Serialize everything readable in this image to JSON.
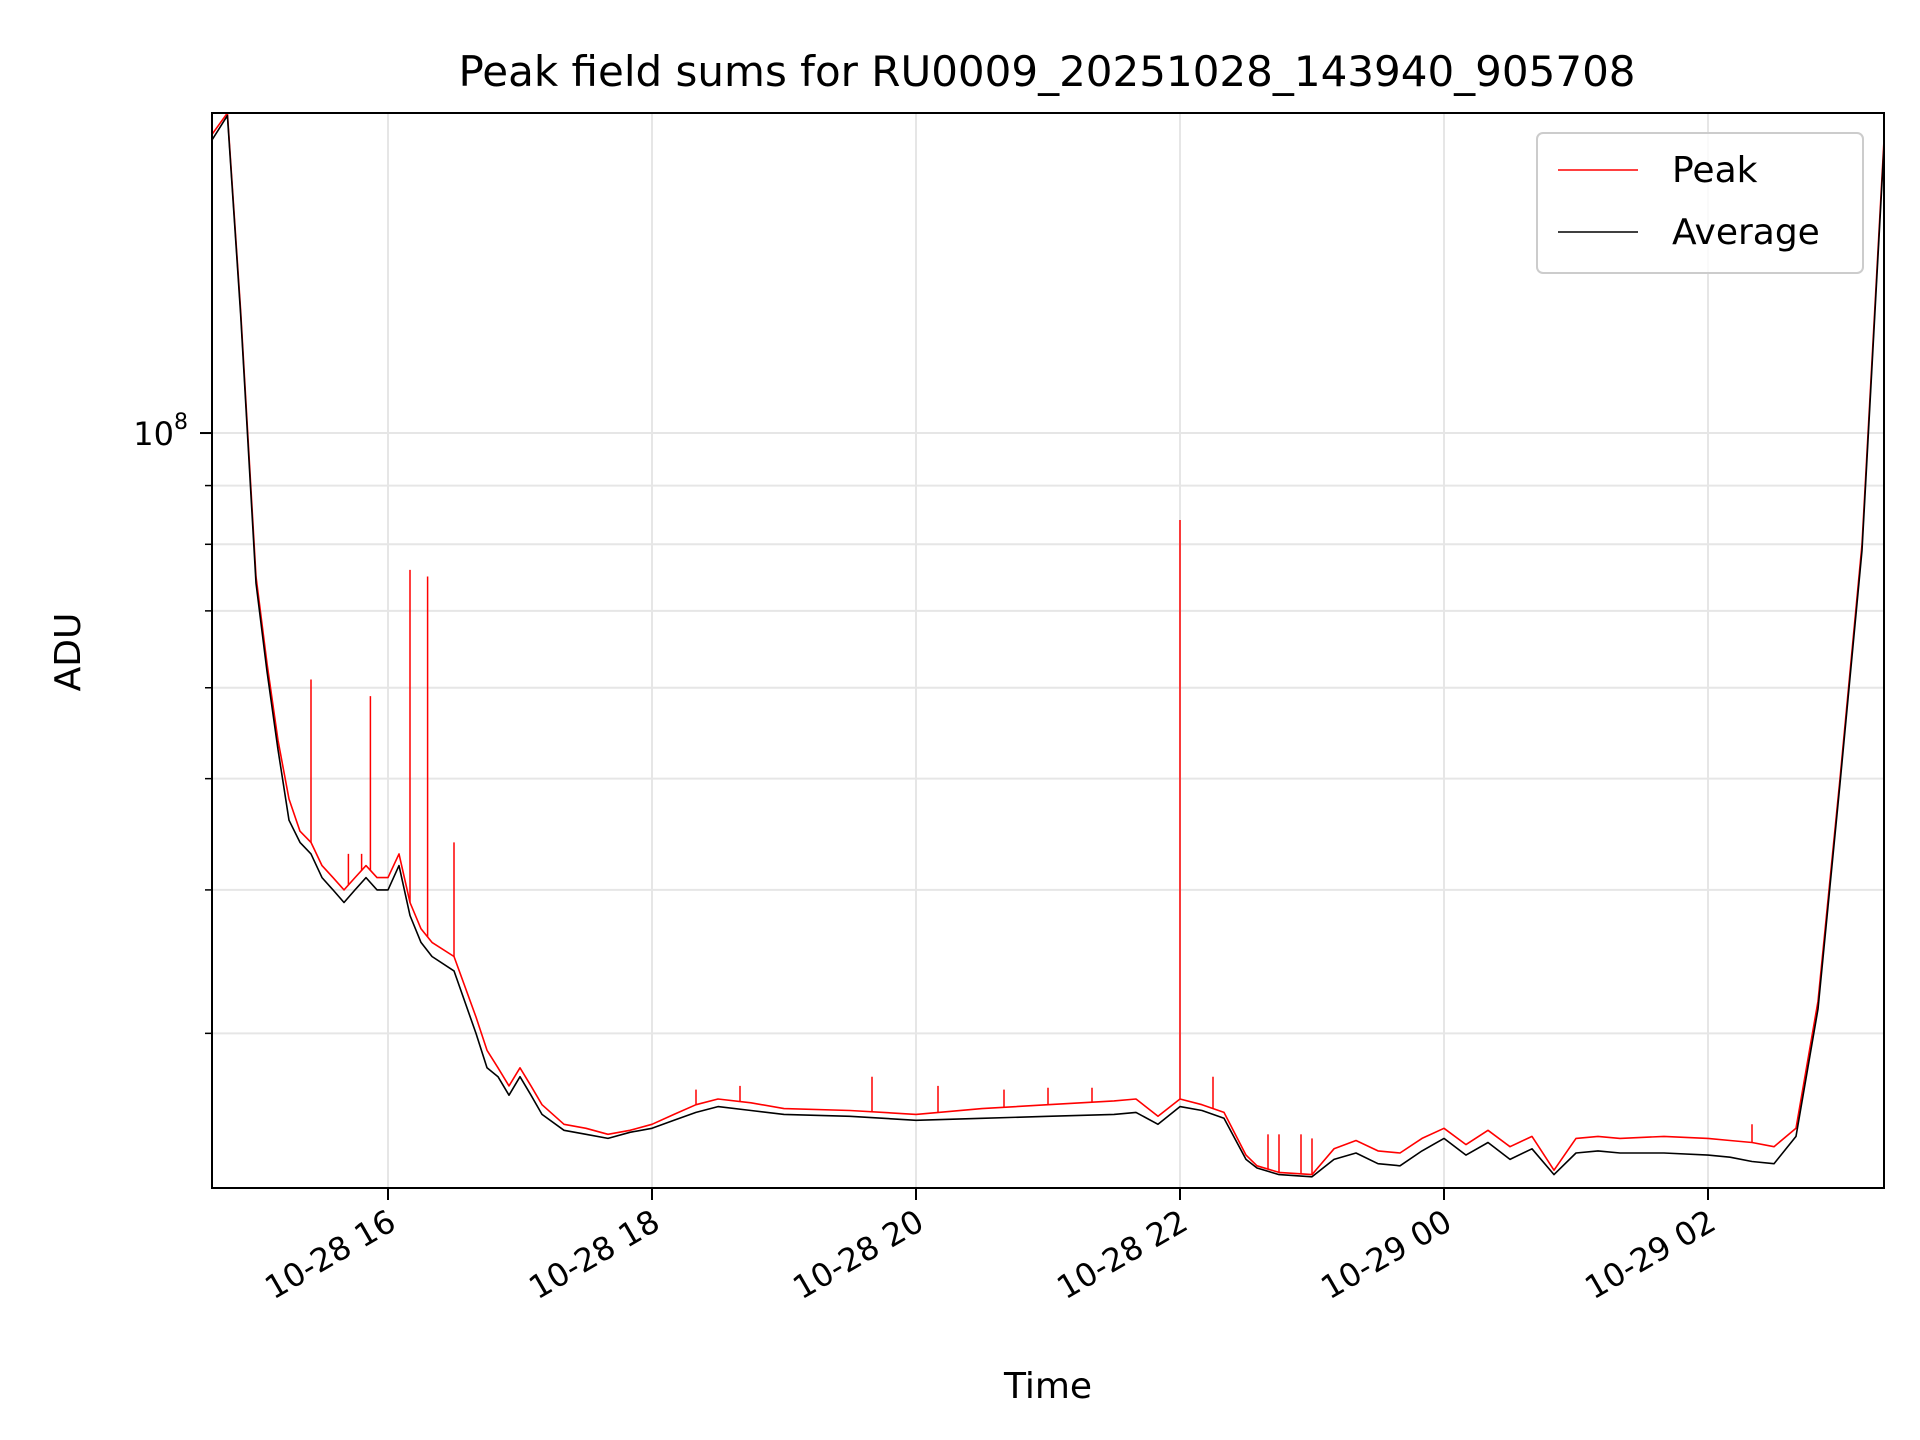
{
  "chart_data": {
    "type": "line",
    "title": "Peak field sums for RU0009_20251028_143940_905708",
    "xlabel": "Time",
    "ylabel": "ADU",
    "y_scale": "log",
    "grid": true,
    "legend_position": "top-right",
    "xlim": [
      "2025-10-28 14:40",
      "2025-10-29 03:20"
    ],
    "ylim": [
      22000000,
      190000000
    ],
    "x_ticks": [
      {
        "value": "2025-10-28 16:00",
        "label": "10-28 16"
      },
      {
        "value": "2025-10-28 18:00",
        "label": "10-28 18"
      },
      {
        "value": "2025-10-28 20:00",
        "label": "10-28 20"
      },
      {
        "value": "2025-10-28 22:00",
        "label": "10-28 22"
      },
      {
        "value": "2025-10-29 00:00",
        "label": "10-29 00"
      },
      {
        "value": "2025-10-29 02:00",
        "label": "10-29 02"
      }
    ],
    "y_ticks": [
      {
        "value": 100000000,
        "base": "10",
        "exp": "8"
      }
    ],
    "x": [
      "2025-10-28 14:40",
      "2025-10-28 14:47",
      "2025-10-28 14:53",
      "2025-10-28 15:00",
      "2025-10-28 15:05",
      "2025-10-28 15:10",
      "2025-10-28 15:15",
      "2025-10-28 15:20",
      "2025-10-28 15:25",
      "2025-10-28 15:30",
      "2025-10-28 15:35",
      "2025-10-28 15:40",
      "2025-10-28 15:45",
      "2025-10-28 15:50",
      "2025-10-28 15:55",
      "2025-10-28 16:00",
      "2025-10-28 16:05",
      "2025-10-28 16:10",
      "2025-10-28 16:15",
      "2025-10-28 16:20",
      "2025-10-28 16:30",
      "2025-10-28 16:40",
      "2025-10-28 16:45",
      "2025-10-28 16:50",
      "2025-10-28 16:55",
      "2025-10-28 17:00",
      "2025-10-28 17:05",
      "2025-10-28 17:10",
      "2025-10-28 17:20",
      "2025-10-28 17:30",
      "2025-10-28 17:40",
      "2025-10-28 17:50",
      "2025-10-28 18:00",
      "2025-10-28 18:10",
      "2025-10-28 18:20",
      "2025-10-28 18:30",
      "2025-10-28 18:45",
      "2025-10-28 19:00",
      "2025-10-28 19:30",
      "2025-10-28 20:00",
      "2025-10-28 20:30",
      "2025-10-28 21:00",
      "2025-10-28 21:30",
      "2025-10-28 21:40",
      "2025-10-28 21:50",
      "2025-10-28 22:00",
      "2025-10-28 22:10",
      "2025-10-28 22:20",
      "2025-10-28 22:30",
      "2025-10-28 22:35",
      "2025-10-28 22:45",
      "2025-10-28 23:00",
      "2025-10-28 23:10",
      "2025-10-28 23:20",
      "2025-10-28 23:30",
      "2025-10-28 23:40",
      "2025-10-28 23:50",
      "2025-10-29 00:00",
      "2025-10-29 00:10",
      "2025-10-29 00:20",
      "2025-10-29 00:30",
      "2025-10-29 00:40",
      "2025-10-29 00:50",
      "2025-10-29 01:00",
      "2025-10-29 01:10",
      "2025-10-29 01:20",
      "2025-10-29 01:40",
      "2025-10-29 02:00",
      "2025-10-29 02:10",
      "2025-10-29 02:20",
      "2025-10-29 02:30",
      "2025-10-29 02:40",
      "2025-10-29 02:50",
      "2025-10-29 03:00",
      "2025-10-29 03:10",
      "2025-10-29 03:20"
    ],
    "series": [
      {
        "name": "Peak",
        "color": "#ff0000",
        "values": [
          182000000,
          190000000,
          128000000,
          75000000,
          63000000,
          54000000,
          48000000,
          45000000,
          44000000,
          42000000,
          41000000,
          40000000,
          41000000,
          42000000,
          41000000,
          41000000,
          43000000,
          39000000,
          37000000,
          36000000,
          35000000,
          31000000,
          29000000,
          28000000,
          27000000,
          28000000,
          27000000,
          26000000,
          25000000,
          24800000,
          24500000,
          24700000,
          25000000,
          25500000,
          26000000,
          26300000,
          26100000,
          25800000,
          25700000,
          25500000,
          25800000,
          26000000,
          26200000,
          26300000,
          25400000,
          26300000,
          26000000,
          25600000,
          23500000,
          23000000,
          22700000,
          22600000,
          23800000,
          24200000,
          23700000,
          23600000,
          24300000,
          24800000,
          24000000,
          24700000,
          23900000,
          24400000,
          22800000,
          24300000,
          24400000,
          24300000,
          24400000,
          24300000,
          24200000,
          24100000,
          23900000,
          24800000,
          32000000,
          50000000,
          80000000,
          180000000
        ]
      },
      {
        "name": "Average",
        "color": "#000000",
        "values": [
          180000000,
          189000000,
          127000000,
          74000000,
          62000000,
          53000000,
          46000000,
          44000000,
          43000000,
          41000000,
          40000000,
          39000000,
          40000000,
          41000000,
          40000000,
          40000000,
          42000000,
          38000000,
          36000000,
          35000000,
          34000000,
          30000000,
          28000000,
          27500000,
          26500000,
          27500000,
          26500000,
          25500000,
          24700000,
          24500000,
          24300000,
          24600000,
          24800000,
          25200000,
          25600000,
          25900000,
          25700000,
          25500000,
          25400000,
          25200000,
          25300000,
          25400000,
          25500000,
          25600000,
          25000000,
          25900000,
          25700000,
          25300000,
          23300000,
          22900000,
          22600000,
          22500000,
          23300000,
          23600000,
          23100000,
          23000000,
          23700000,
          24300000,
          23500000,
          24100000,
          23300000,
          23800000,
          22600000,
          23600000,
          23700000,
          23600000,
          23600000,
          23500000,
          23400000,
          23200000,
          23100000,
          24400000,
          31500000,
          49500000,
          79000000,
          178000000
        ]
      }
    ],
    "spikes": {
      "series": "Peak",
      "points": [
        {
          "x": "2025-10-28 15:25",
          "y": 61000000
        },
        {
          "x": "2025-10-28 15:42",
          "y": 43000000
        },
        {
          "x": "2025-10-28 15:48",
          "y": 43000000
        },
        {
          "x": "2025-10-28 15:52",
          "y": 59000000
        },
        {
          "x": "2025-10-28 16:10",
          "y": 76000000
        },
        {
          "x": "2025-10-28 16:18",
          "y": 75000000
        },
        {
          "x": "2025-10-28 16:30",
          "y": 44000000
        },
        {
          "x": "2025-10-28 18:20",
          "y": 26800000
        },
        {
          "x": "2025-10-28 18:40",
          "y": 27000000
        },
        {
          "x": "2025-10-28 19:40",
          "y": 27500000
        },
        {
          "x": "2025-10-28 20:10",
          "y": 27000000
        },
        {
          "x": "2025-10-28 20:40",
          "y": 26800000
        },
        {
          "x": "2025-10-28 21:00",
          "y": 26900000
        },
        {
          "x": "2025-10-28 21:20",
          "y": 26900000
        },
        {
          "x": "2025-10-28 22:00",
          "y": 84000000
        },
        {
          "x": "2025-10-28 22:15",
          "y": 27500000
        },
        {
          "x": "2025-10-28 22:40",
          "y": 24500000
        },
        {
          "x": "2025-10-28 22:45",
          "y": 24500000
        },
        {
          "x": "2025-10-28 22:55",
          "y": 24500000
        },
        {
          "x": "2025-10-28 23:00",
          "y": 24300000
        },
        {
          "x": "2025-10-29 02:20",
          "y": 25000000
        }
      ]
    }
  }
}
